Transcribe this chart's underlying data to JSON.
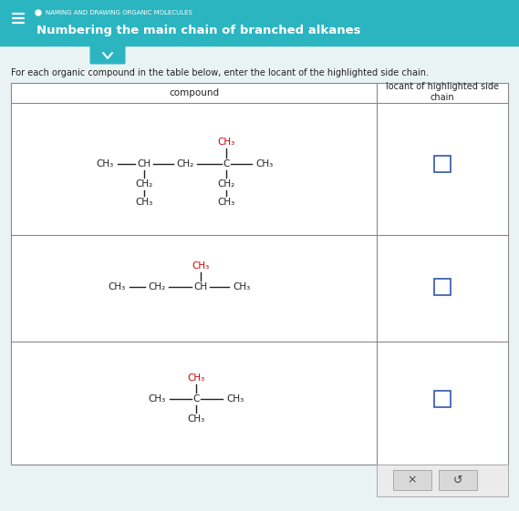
{
  "header_bg": "#2bb5c0",
  "header_text_small": "NAMING AND DRAWING ORGANIC MOLECULES",
  "header_text_main": "Numbering the main chain of branched alkanes",
  "instruction": "For each organic compound in the table below, enter the locant of the highlighted side chain.",
  "col1_header": "compound",
  "col2_header": "locant of highlighted side\nchain",
  "bg_color": "#eaf3f4",
  "white": "#ffffff",
  "red": "#cc0000",
  "blue_input": "#3355aa",
  "dark": "#222222",
  "teal": "#2bb5c0",
  "light_gray": "#d8d8d8",
  "table_border": "#888888",
  "btn_bg": "#e0e0e0",
  "btn_border": "#aaaaaa"
}
